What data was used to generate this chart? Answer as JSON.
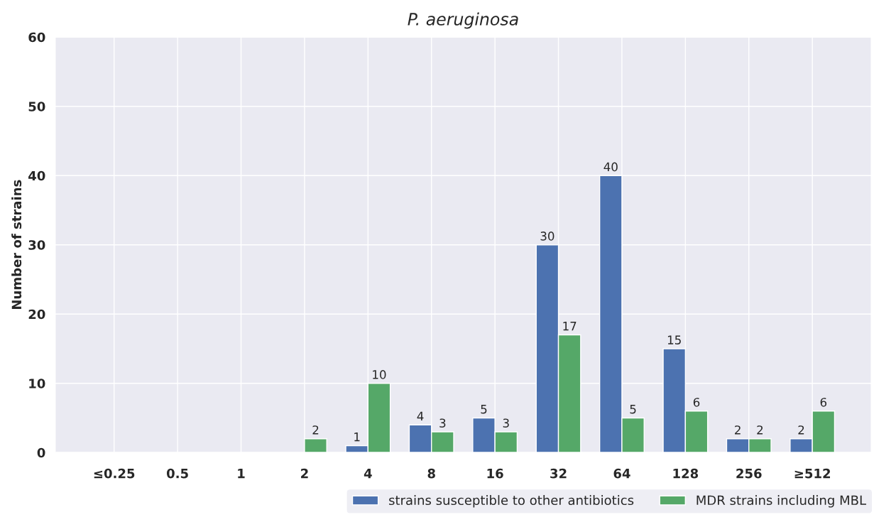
{
  "chart_data": {
    "type": "bar",
    "title": "P. aeruginosa",
    "ylabel": "Number of strains",
    "categories": [
      "≤0.25",
      "0.5",
      "1",
      "2",
      "4",
      "8",
      "16",
      "32",
      "64",
      "128",
      "256",
      "≥512"
    ],
    "series": [
      {
        "name": "strains susceptible to other antibiotics",
        "color": "#4c72b0",
        "values": [
          null,
          null,
          null,
          null,
          1,
          4,
          5,
          30,
          40,
          15,
          2,
          2
        ]
      },
      {
        "name": "MDR strains including MBL",
        "color": "#55a868",
        "values": [
          null,
          null,
          null,
          2,
          10,
          3,
          3,
          17,
          5,
          6,
          2,
          6
        ]
      }
    ],
    "ylim": [
      0,
      60
    ],
    "yticks": [
      0,
      10,
      20,
      30,
      40,
      50,
      60
    ],
    "grid": true,
    "legend": "bottom right",
    "data_labels": true
  }
}
